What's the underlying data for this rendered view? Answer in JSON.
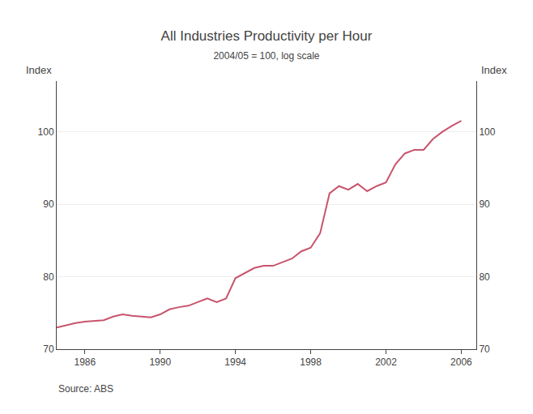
{
  "chart_data": {
    "type": "line",
    "title": "All Industries Productivity per Hour",
    "subtitle": "2004/05 = 100, log scale",
    "ylabel": "Index",
    "y2label": "Index",
    "source": "Source: ABS",
    "color": "#c8546e",
    "grid": "y",
    "x": [
      1984.5,
      1985,
      1985.5,
      1986,
      1986.5,
      1987,
      1987.5,
      1988,
      1988.5,
      1989,
      1989.5,
      1990,
      1990.5,
      1991,
      1991.5,
      1992,
      1992.5,
      1993,
      1993.5,
      1994,
      1994.5,
      1995,
      1995.5,
      1996,
      1996.5,
      1997,
      1997.5,
      1998,
      1998.5,
      1999,
      1999.5,
      2000,
      2000.5,
      2001,
      2001.5,
      2002,
      2002.5,
      2003,
      2003.5,
      2004,
      2004.5,
      2005,
      2005.5,
      2006
    ],
    "values": [
      73.0,
      73.3,
      73.6,
      73.8,
      73.9,
      74.0,
      74.5,
      74.8,
      74.6,
      74.5,
      74.4,
      74.8,
      75.5,
      75.8,
      76.0,
      76.5,
      77.0,
      76.5,
      77.0,
      79.8,
      80.5,
      81.2,
      81.5,
      81.5,
      82.0,
      82.5,
      83.5,
      84.0,
      86.0,
      91.5,
      92.5,
      92.0,
      92.8,
      91.8,
      92.5,
      93.0,
      95.5,
      97.0,
      97.5,
      97.5,
      99.0,
      100.0,
      100.8,
      101.5
    ],
    "xlim": [
      1984.5,
      2006.8
    ],
    "xticks": [
      1986,
      1990,
      1994,
      1998,
      2002,
      2006
    ],
    "ylim": [
      70,
      107
    ],
    "yticks": [
      70,
      80,
      90,
      100
    ],
    "y2lim": [
      70,
      107
    ],
    "y2ticks": [
      70,
      80,
      90,
      100
    ]
  }
}
